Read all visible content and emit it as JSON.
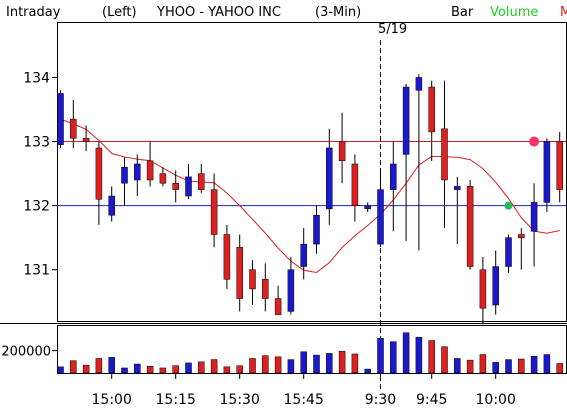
{
  "header": {
    "mode": "Intraday",
    "axis_side": "(Left)",
    "ticker_title": "YHOO - YAHOO INC",
    "interval": "(3-Min)",
    "bar_label": "Bar",
    "volume_label": "Volume",
    "clipped_label": "M"
  },
  "session_marker": "5/19",
  "colors": {
    "up": "#1a1acc",
    "down": "#dd2020",
    "ma": "#dd2020",
    "ref_red": "#dd2020",
    "ref_blue": "#2020cc",
    "volume_label": "#22cc22",
    "neutral": "#2a8a2a",
    "frame": "#000000"
  },
  "chart_data": {
    "type": "candlestick",
    "price_axis": {
      "ticks": [
        131,
        132,
        133,
        134
      ],
      "ylim": [
        130.2,
        134.85
      ]
    },
    "volume_axis": {
      "ticks": [
        200000
      ],
      "ylim": [
        0,
        420000
      ]
    },
    "x_tick_labels": [
      "15:00",
      "15:15",
      "15:30",
      "15:45",
      "9:30",
      "9:45",
      "10:00"
    ],
    "reference_lines": [
      {
        "color": "red",
        "price": 133.0
      },
      {
        "color": "blue",
        "price": 132.0
      }
    ],
    "markers": [
      {
        "type": "green-dot",
        "bar": 35,
        "price": 132.0
      },
      {
        "type": "pink-dot",
        "bar": 37,
        "price": 133.0
      }
    ],
    "bars": [
      {
        "t": "",
        "o": 132.95,
        "h": 133.8,
        "l": 132.9,
        "c": 133.75,
        "v": 55000
      },
      {
        "t": "",
        "o": 133.35,
        "h": 133.65,
        "l": 132.9,
        "c": 133.05,
        "v": 110000
      },
      {
        "t": "",
        "o": 133.05,
        "h": 133.25,
        "l": 132.85,
        "c": 133.0,
        "v": 70000
      },
      {
        "t": "",
        "o": 132.9,
        "h": 133.0,
        "l": 131.7,
        "c": 132.1,
        "v": 130000
      },
      {
        "t": "15:00",
        "o": 131.85,
        "h": 132.3,
        "l": 131.75,
        "c": 132.15,
        "v": 140000
      },
      {
        "t": "",
        "o": 132.35,
        "h": 132.75,
        "l": 132.0,
        "c": 132.6,
        "v": 45000
      },
      {
        "t": "",
        "o": 132.4,
        "h": 132.8,
        "l": 132.15,
        "c": 132.65,
        "v": 80000
      },
      {
        "t": "",
        "o": 132.7,
        "h": 133.0,
        "l": 132.3,
        "c": 132.4,
        "v": 60000
      },
      {
        "t": "",
        "o": 132.5,
        "h": 132.6,
        "l": 132.3,
        "c": 132.35,
        "v": 45000
      },
      {
        "t": "15:15",
        "o": 132.35,
        "h": 132.55,
        "l": 132.05,
        "c": 132.25,
        "v": 65000
      },
      {
        "t": "",
        "o": 132.15,
        "h": 132.65,
        "l": 132.1,
        "c": 132.45,
        "v": 90000
      },
      {
        "t": "",
        "o": 132.5,
        "h": 132.65,
        "l": 132.2,
        "c": 132.25,
        "v": 100000
      },
      {
        "t": "",
        "o": 132.25,
        "h": 132.5,
        "l": 131.35,
        "c": 131.55,
        "v": 120000
      },
      {
        "t": "",
        "o": 131.55,
        "h": 131.7,
        "l": 130.7,
        "c": 130.85,
        "v": 55000
      },
      {
        "t": "15:30",
        "o": 131.35,
        "h": 131.55,
        "l": 130.35,
        "c": 130.55,
        "v": 65000
      },
      {
        "t": "",
        "o": 131.0,
        "h": 131.15,
        "l": 130.45,
        "c": 130.7,
        "v": 130000
      },
      {
        "t": "",
        "o": 130.85,
        "h": 131.1,
        "l": 130.35,
        "c": 130.55,
        "v": 155000
      },
      {
        "t": "",
        "o": 130.55,
        "h": 130.75,
        "l": 130.3,
        "c": 130.3,
        "v": 145000
      },
      {
        "t": "",
        "o": 130.35,
        "h": 131.2,
        "l": 130.3,
        "c": 131.0,
        "v": 120000
      },
      {
        "t": "15:45",
        "o": 131.05,
        "h": 131.65,
        "l": 130.85,
        "c": 131.4,
        "v": 190000
      },
      {
        "t": "",
        "o": 131.4,
        "h": 132.0,
        "l": 131.25,
        "c": 131.85,
        "v": 160000
      },
      {
        "t": "",
        "o": 131.95,
        "h": 133.2,
        "l": 131.7,
        "c": 132.9,
        "v": 175000
      },
      {
        "t": "",
        "o": 133.0,
        "h": 133.45,
        "l": 132.35,
        "c": 132.7,
        "v": 195000
      },
      {
        "t": "",
        "o": 132.65,
        "h": 132.8,
        "l": 131.75,
        "c": 132.0,
        "v": 170000
      },
      {
        "t": "",
        "o": 131.95,
        "h": 132.05,
        "l": 131.9,
        "c": 132.0,
        "v": 35000
      },
      {
        "t": "9:30",
        "o": 131.4,
        "h": 132.55,
        "l": 131.35,
        "c": 132.25,
        "v": 310000
      },
      {
        "t": "",
        "o": 132.25,
        "h": 133.0,
        "l": 131.6,
        "c": 132.65,
        "v": 280000
      },
      {
        "t": "",
        "o": 132.8,
        "h": 133.9,
        "l": 131.45,
        "c": 133.85,
        "v": 360000
      },
      {
        "t": "",
        "o": 133.8,
        "h": 134.05,
        "l": 131.3,
        "c": 134.0,
        "v": 320000
      },
      {
        "t": "9:45",
        "o": 133.85,
        "h": 133.95,
        "l": 132.7,
        "c": 133.15,
        "v": 290000
      },
      {
        "t": "",
        "o": 133.2,
        "h": 133.95,
        "l": 131.65,
        "c": 132.4,
        "v": 235000
      },
      {
        "t": "",
        "o": 132.25,
        "h": 132.45,
        "l": 131.4,
        "c": 132.3,
        "v": 130000
      },
      {
        "t": "",
        "o": 132.3,
        "h": 132.4,
        "l": 131.0,
        "c": 131.05,
        "v": 115000
      },
      {
        "t": "",
        "o": 131.0,
        "h": 131.2,
        "l": 130.15,
        "c": 130.4,
        "v": 165000
      },
      {
        "t": "10:00",
        "o": 130.45,
        "h": 131.3,
        "l": 130.3,
        "c": 131.05,
        "v": 95000
      },
      {
        "t": "",
        "o": 131.05,
        "h": 131.55,
        "l": 130.95,
        "c": 131.5,
        "v": 120000
      },
      {
        "t": "",
        "o": 131.55,
        "h": 131.65,
        "l": 131.0,
        "c": 131.5,
        "v": 125000
      },
      {
        "t": "",
        "o": 131.6,
        "h": 132.35,
        "l": 131.05,
        "c": 132.05,
        "v": 150000
      },
      {
        "t": "",
        "o": 132.05,
        "h": 133.05,
        "l": 131.9,
        "c": 133.0,
        "v": 165000
      },
      {
        "t": "",
        "o": 133.0,
        "h": 133.15,
        "l": 132.05,
        "c": 132.25,
        "v": 85000
      }
    ]
  }
}
